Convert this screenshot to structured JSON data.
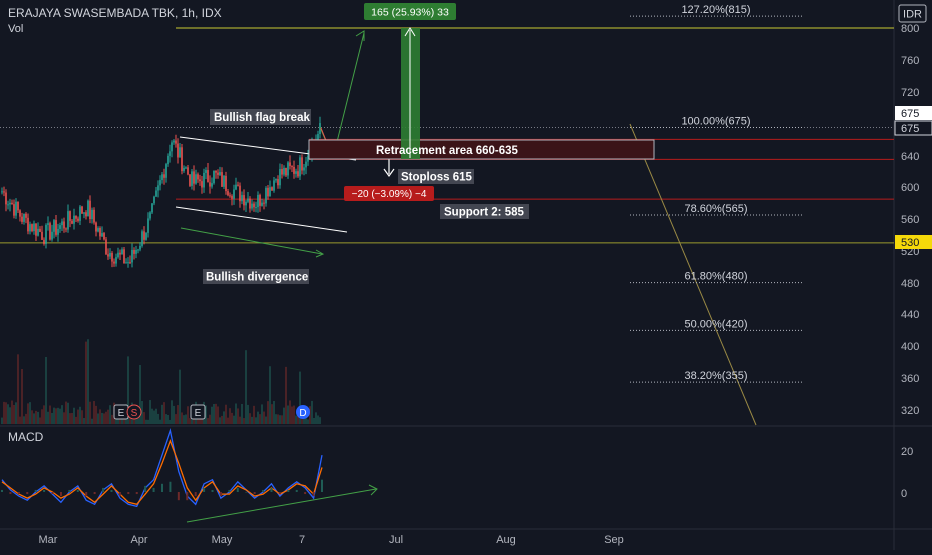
{
  "header": {
    "symbol_line": "ERAJAYA SWASEMBADA TBK, 1h, IDX",
    "vol_label": "Vol",
    "currency": "IDR"
  },
  "macd_label": "MACD",
  "price_axis": {
    "ticks": [
      "800",
      "760",
      "720",
      "680",
      "640",
      "600",
      "560",
      "520",
      "480",
      "440",
      "400",
      "360",
      "320"
    ],
    "flags": [
      "675",
      "675",
      "530"
    ]
  },
  "macd_axis": {
    "ticks": [
      "20",
      "0"
    ]
  },
  "time_axis": {
    "ticks": [
      "Mar",
      "Apr",
      "May",
      "7",
      "Jul",
      "Aug",
      "Sep"
    ]
  },
  "fib_levels": [
    {
      "label": "127.20%(815)",
      "price": 815
    },
    {
      "label": "100.00%(675)",
      "price": 675
    },
    {
      "label": "78.60%(565)",
      "price": 565
    },
    {
      "label": "61.80%(480)",
      "price": 480
    },
    {
      "label": "50.00%(420)",
      "price": 420
    },
    {
      "label": "38.20%(355)",
      "price": 355
    }
  ],
  "annotations": {
    "bullish_flag": "Bullish flag break",
    "retracement": "Retracement area 660-635",
    "stoploss": "Stoploss 615",
    "risk": "−20 (−3.09%) −4",
    "support": "Support 2: 585",
    "divergence": "Bullish divergence",
    "target": "165 (25.93%) 33"
  },
  "events": [
    "E",
    "S",
    "E",
    "D"
  ],
  "colors": {
    "background": "#131722",
    "up": "#26a69a",
    "down": "#ef5350",
    "macd_line": "#2962ff",
    "signal_line": "#ff6d00",
    "target": "#2e7d32",
    "level_red": "#b71c1c",
    "level_yellow": "#c8c832"
  },
  "chart_data": [
    {
      "type": "candlestick",
      "title": "ERAJAYA SWASEMBADA TBK, 1h, IDX",
      "ylabel": "IDR",
      "ylim": [
        305,
        820
      ],
      "x_ticks": [
        "Mar",
        "Apr",
        "May",
        "7",
        "Jul",
        "Aug",
        "Sep"
      ],
      "price_path": [
        {
          "x": "early Feb",
          "y": 595
        },
        {
          "x": "mid Feb",
          "y": 560
        },
        {
          "x": "late Feb",
          "y": 540
        },
        {
          "x": "Mar",
          "y": 555
        },
        {
          "x": "mid Mar",
          "y": 575
        },
        {
          "x": "late Mar",
          "y": 520
        },
        {
          "x": "Apr",
          "y": 505
        },
        {
          "x": "early Apr",
          "y": 560
        },
        {
          "x": "Apr (high)",
          "y": 660
        },
        {
          "x": "mid Apr",
          "y": 605
        },
        {
          "x": "late Apr",
          "y": 615
        },
        {
          "x": "May",
          "y": 595
        },
        {
          "x": "mid May",
          "y": 580
        },
        {
          "x": "late May",
          "y": 615
        },
        {
          "x": "Jun",
          "y": 625
        },
        {
          "x": "Jun (last)",
          "y": 670
        }
      ],
      "levels": [
        800,
        675,
        660,
        635,
        615,
        585,
        530
      ],
      "last_price": 675
    },
    {
      "type": "line",
      "title": "MACD",
      "series": [
        {
          "name": "MACD",
          "values": [
            6,
            1,
            -2,
            -4,
            0,
            3,
            -1,
            -5,
            0,
            3,
            -4,
            -6,
            1,
            4,
            -3,
            -6,
            -7,
            2,
            6,
            18,
            30,
            10,
            -2,
            -6,
            4,
            6,
            -3,
            0,
            5,
            1,
            -3,
            0,
            4,
            -2,
            2,
            5,
            2,
            -3,
            18
          ]
        },
        {
          "name": "Signal",
          "values": [
            5,
            2,
            -1,
            -3,
            -1,
            2,
            0,
            -3,
            -1,
            2,
            -2,
            -5,
            -1,
            3,
            -1,
            -5,
            -6,
            -1,
            4,
            14,
            25,
            14,
            2,
            -4,
            2,
            5,
            -1,
            -1,
            3,
            1,
            -2,
            -1,
            2,
            -1,
            1,
            4,
            3,
            -1,
            12
          ]
        }
      ],
      "y_ticks": [
        20,
        0
      ]
    }
  ]
}
